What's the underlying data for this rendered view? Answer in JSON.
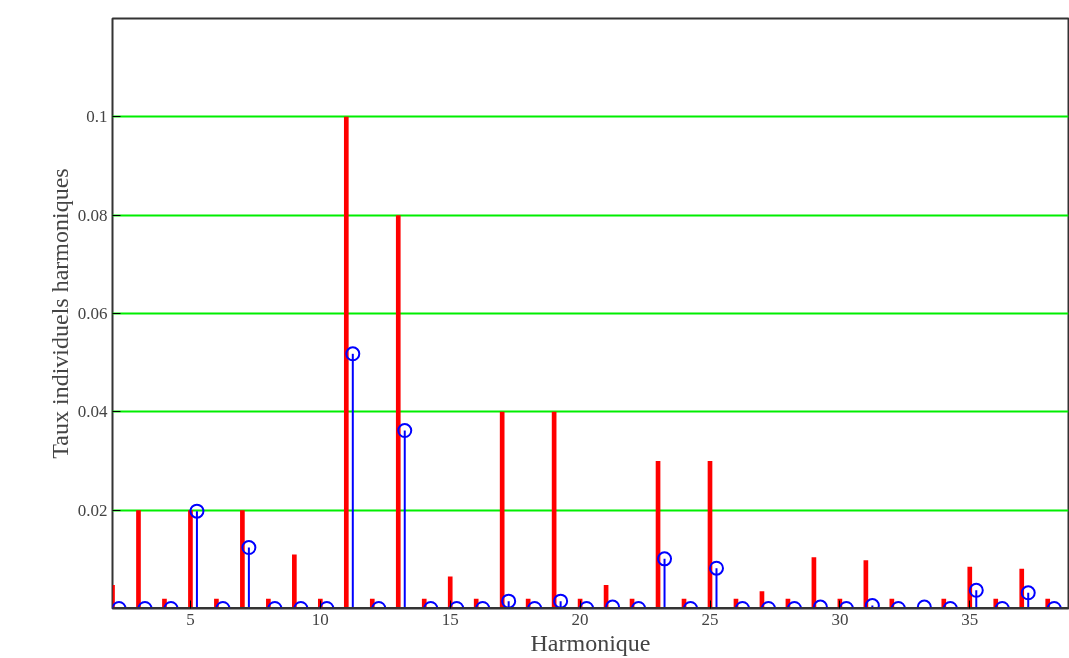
{
  "chart_data": {
    "type": "bar",
    "xlabel": "Harmonique",
    "ylabel": "Taux individuels harmoniques",
    "xlim": [
      2,
      38.8
    ],
    "ylim": [
      0,
      0.12
    ],
    "xticks": [
      5,
      10,
      15,
      20,
      25,
      30,
      35
    ],
    "yticks": [
      0.02,
      0.04,
      0.06,
      0.08,
      0.1
    ],
    "grid": "y",
    "series": [
      {
        "color": "#ff0000",
        "x": [
          2,
          3,
          4,
          5,
          6,
          7,
          8,
          9,
          10,
          11,
          12,
          13,
          14,
          15,
          16,
          17,
          18,
          19,
          20,
          21,
          22,
          23,
          24,
          25,
          26,
          27,
          28,
          29,
          30,
          31,
          32,
          33,
          34,
          35,
          36,
          37,
          38
        ],
        "values": [
          0.0048,
          0.02,
          0.002,
          0.02,
          0.002,
          0.02,
          0.002,
          0.011,
          0.002,
          0.1,
          0.002,
          0.08,
          0.002,
          0.0065,
          0.002,
          0.04,
          0.002,
          0.04,
          0.002,
          0.0048,
          0.002,
          0.03,
          0.002,
          0.03,
          0.002,
          0.0035,
          0.002,
          0.0104,
          0.002,
          0.0098,
          0.002,
          0,
          0.002,
          0.0085,
          0.002,
          0.0081,
          0.002
        ]
      },
      {
        "type": "lollipop",
        "marker": "circle",
        "color": "#0000ff",
        "x": [
          2.25,
          3.25,
          4.25,
          5.25,
          6.25,
          7.25,
          8.25,
          9.25,
          10.25,
          11.25,
          12.25,
          13.25,
          14.25,
          15.25,
          16.25,
          17.25,
          18.25,
          19.25,
          20.25,
          21.25,
          22.25,
          23.25,
          24.25,
          25.25,
          26.25,
          27.25,
          28.25,
          29.25,
          30.25,
          31.25,
          32.25,
          33.25,
          34.25,
          35.25,
          36.25,
          37.25,
          38.25
        ],
        "values": [
          0,
          0,
          0,
          0.0198,
          0,
          0.0124,
          0,
          0,
          0,
          0.0518,
          0,
          0.0362,
          0,
          0,
          0,
          0.0015,
          0,
          0.0015,
          0,
          0.0003,
          0,
          0.0101,
          0,
          0.0082,
          0,
          0,
          0,
          0.0003,
          0,
          0.0006,
          0,
          0.0003,
          0,
          0.0037,
          0,
          0.0032,
          0
        ]
      }
    ]
  }
}
